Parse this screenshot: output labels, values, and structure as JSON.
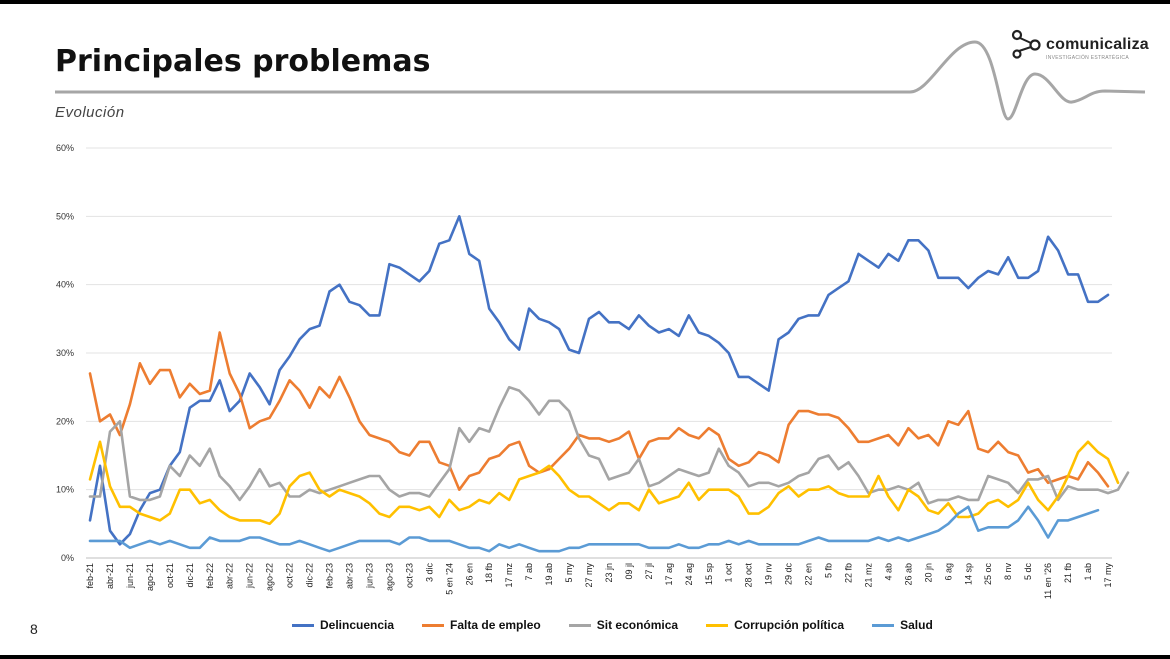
{
  "slide": {
    "title": "Principales problemas",
    "subtitle": "Evolución",
    "page_number": "8",
    "logo": {
      "name": "comunicaliza",
      "tagline": "INVESTIGACIÓN ESTRATÉGICA"
    }
  },
  "chart_data": {
    "type": "line",
    "ylim": [
      0,
      60
    ],
    "yticks": [
      "0%",
      "10%",
      "20%",
      "30%",
      "40%",
      "50%",
      "60%"
    ],
    "grid": true,
    "legend_position": "bottom",
    "x_labels": [
      "feb-21",
      "abr-21",
      "jun-21",
      "ago-21",
      "oct-21",
      "dic-21",
      "feb-22",
      "abr-22",
      "jun-22",
      "ago-22",
      "oct-22",
      "dic-22",
      "feb-23",
      "abr-23",
      "jun-23",
      "ago-23",
      "oct-23",
      "3 dic",
      "5 en '24",
      "26 en",
      "18 fb",
      "17 mz",
      "7 ab",
      "19 ab",
      "5 my",
      "27 my",
      "23 jn",
      "09 jl",
      "27 jl",
      "17 ag",
      "24 ag",
      "15 sp",
      "1 oct",
      "28 oct",
      "19 nv",
      "29 dc",
      "22 en",
      "5 fb",
      "22 fb",
      "21 mz",
      "4 ab",
      "26 ab",
      "20 jn",
      "6 ag",
      "14 sp",
      "25 oc",
      "8 nv",
      "5 dc",
      "11 en '26",
      "21 fb",
      "1 ab",
      "17 my"
    ],
    "series": [
      {
        "name": "Delincuencia",
        "color": "#4472C4",
        "values": [
          5.5,
          13.5,
          4,
          2,
          3.5,
          7,
          9.5,
          10,
          13.5,
          15.5,
          22,
          23,
          23,
          26,
          21.5,
          23,
          27,
          25,
          22.5,
          27.5,
          29.5,
          32,
          33.5,
          34,
          39,
          40,
          37.5,
          37,
          35.5,
          35.5,
          43,
          42.5,
          41.5,
          40.5,
          42,
          46,
          46.5,
          50,
          44.5,
          43.5,
          36.5,
          34.5,
          32,
          30.5,
          36.5,
          35,
          34.5,
          33.5,
          30.5,
          30,
          35,
          36,
          34.5,
          34.5,
          33.5,
          35.5,
          34,
          33,
          33.5,
          32.5,
          35.5,
          33,
          32.5,
          31.5,
          30,
          26.5,
          26.5,
          25.5,
          24.5,
          32,
          33,
          35,
          35.5,
          35.5,
          38.5,
          39.5,
          40.5,
          44.5,
          43.5,
          42.5,
          44.5,
          43.5,
          46.5,
          46.5,
          45,
          41,
          41,
          41,
          39.5,
          41,
          42,
          41.5,
          44,
          41,
          41,
          42,
          47,
          45,
          41.5,
          41.5,
          37.5,
          37.5,
          38.5
        ]
      },
      {
        "name": "Falta de empleo",
        "color": "#ED7D31",
        "values": [
          27,
          20,
          21,
          18,
          22.5,
          28.5,
          25.5,
          27.5,
          27.5,
          23.5,
          25.5,
          24,
          24.5,
          33,
          27,
          24,
          19,
          20,
          20.5,
          23,
          26,
          24.5,
          22,
          25,
          23.5,
          26.5,
          23.5,
          20,
          18,
          17.5,
          17,
          15.5,
          15,
          17,
          17,
          14,
          13.5,
          10,
          12,
          12.5,
          14.5,
          15,
          16.5,
          17,
          13.5,
          12.5,
          13,
          14.5,
          16,
          18,
          17.5,
          17.5,
          17,
          17.5,
          18.5,
          14.5,
          17,
          17.5,
          17.5,
          19,
          18,
          17.5,
          19,
          18,
          14.5,
          13.5,
          14,
          15.5,
          15,
          14,
          19.5,
          21.5,
          21.5,
          21,
          21,
          20.5,
          19,
          17,
          17,
          17.5,
          18,
          16.5,
          19,
          17.5,
          18,
          16.5,
          20,
          19.5,
          21.5,
          16,
          15.5,
          17,
          15.5,
          15,
          12.5,
          13,
          11,
          11.5,
          12,
          11.5,
          14,
          12.5,
          10.5
        ]
      },
      {
        "name": "Sit económica",
        "color": "#A5A5A5",
        "values": [
          9,
          9,
          18.5,
          20,
          9,
          8.5,
          8.5,
          9,
          13.5,
          12,
          15,
          13.5,
          16,
          12,
          10.5,
          8.5,
          10.5,
          13,
          10.5,
          11,
          9,
          9,
          10,
          9.5,
          10,
          10.5,
          11,
          11.5,
          12,
          12,
          10,
          9,
          9.5,
          9.5,
          9,
          11,
          13,
          19,
          17,
          19,
          18.5,
          22,
          25,
          24.5,
          23,
          21,
          23,
          23,
          21.5,
          17.5,
          15,
          14.5,
          11.5,
          12,
          12.5,
          14.5,
          10.5,
          11,
          12,
          13,
          12.5,
          12,
          12.5,
          16,
          13.5,
          12.5,
          10.5,
          11,
          11,
          10.5,
          11,
          12,
          12.5,
          14.5,
          15,
          13,
          14,
          12,
          9.5,
          10,
          10,
          10.5,
          10,
          11,
          8,
          8.5,
          8.5,
          9,
          8.5,
          8.5,
          12,
          11.5,
          11,
          9.5,
          11.5,
          11.5,
          12,
          8.5,
          10.5,
          10,
          10,
          10,
          9.5,
          10,
          12.5
        ]
      },
      {
        "name": "Corrupción política",
        "color": "#FFC000",
        "values": [
          11.5,
          17,
          10.5,
          7.5,
          7.5,
          6.5,
          6,
          5.5,
          6.5,
          10,
          10,
          8,
          8.5,
          7,
          6,
          5.5,
          5.5,
          5.5,
          5,
          6.5,
          10.5,
          12,
          12.5,
          10,
          9,
          10,
          9.5,
          9,
          8,
          6.5,
          6,
          7.5,
          7.5,
          7,
          7.5,
          6,
          8.5,
          7,
          7.5,
          8.5,
          8,
          9.5,
          8.5,
          11.5,
          12,
          12.5,
          13.5,
          12,
          10,
          9,
          9,
          8,
          7,
          8,
          8,
          7,
          10,
          8,
          8.5,
          9,
          11,
          8.5,
          10,
          10,
          10,
          9,
          6.5,
          6.5,
          7.5,
          9.5,
          10.5,
          9,
          10,
          10,
          10.5,
          9.5,
          9,
          9,
          9,
          12,
          9,
          7,
          10,
          9,
          7,
          6.5,
          8,
          6,
          6,
          6.5,
          8,
          8.5,
          7.5,
          8.5,
          11,
          8.5,
          7,
          9,
          12,
          15.5,
          17,
          15.5,
          14.5,
          11
        ]
      },
      {
        "name": "Salud",
        "color": "#5B9BD5",
        "values": [
          2.5,
          2.5,
          2.5,
          2.5,
          1.5,
          2,
          2.5,
          2,
          2.5,
          2,
          1.5,
          1.5,
          3,
          2.5,
          2.5,
          2.5,
          3,
          3,
          2.5,
          2,
          2,
          2.5,
          2,
          1.5,
          1,
          1.5,
          2,
          2.5,
          2.5,
          2.5,
          2.5,
          2,
          3,
          3,
          2.5,
          2.5,
          2.5,
          2,
          1.5,
          1.5,
          1,
          2,
          1.5,
          2,
          1.5,
          1,
          1,
          1,
          1.5,
          1.5,
          2,
          2,
          2,
          2,
          2,
          2,
          1.5,
          1.5,
          1.5,
          2,
          1.5,
          1.5,
          2,
          2,
          2.5,
          2,
          2.5,
          2,
          2,
          2,
          2,
          2,
          2.5,
          3,
          2.5,
          2.5,
          2.5,
          2.5,
          2.5,
          3,
          2.5,
          3,
          2.5,
          3,
          3.5,
          4,
          5,
          6.5,
          7.5,
          4,
          4.5,
          4.5,
          4.5,
          5.5,
          7.5,
          5.5,
          3,
          5.5,
          5.5,
          6,
          6.5,
          7
        ]
      }
    ]
  }
}
